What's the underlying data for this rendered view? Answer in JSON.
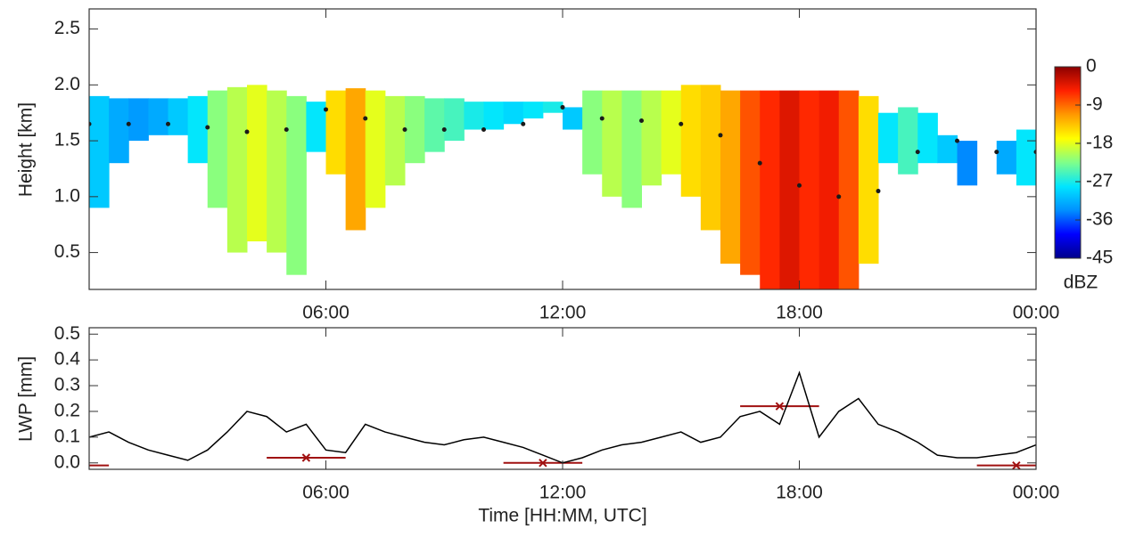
{
  "chart_data": [
    {
      "type": "time-height",
      "y_label": "Height [km]",
      "xlim": [
        0,
        24
      ],
      "ylim": [
        0.17,
        2.68
      ],
      "xticks": [
        {
          "value": 6,
          "label": "06:00"
        },
        {
          "value": 12,
          "label": "12:00"
        },
        {
          "value": 18,
          "label": "18:00"
        },
        {
          "value": 24,
          "label": "00:00"
        }
      ],
      "yticks": [
        {
          "value": 0.5,
          "label": "0.5"
        },
        {
          "value": 1,
          "label": "1.0"
        },
        {
          "value": 1.5,
          "label": "1.5"
        },
        {
          "value": 2,
          "label": "2.0"
        },
        {
          "value": 2.5,
          "label": "2.5"
        }
      ],
      "x": [
        0.25,
        0.75,
        1.25,
        1.75,
        2.25,
        2.75,
        3.25,
        3.75,
        4.25,
        4.75,
        5.25,
        5.75,
        6.25,
        6.75,
        7.25,
        7.75,
        8.25,
        8.75,
        9.25,
        9.75,
        10.25,
        10.75,
        11.25,
        11.75,
        12.25,
        12.75,
        13.25,
        13.75,
        14.25,
        14.75,
        15.25,
        15.75,
        16.25,
        16.75,
        17.25,
        17.75,
        18.25,
        18.75,
        19.25,
        19.75,
        20.25,
        20.75,
        21.25,
        21.75,
        22.25,
        22.75,
        23.25,
        23.75
      ],
      "cloud_top": [
        1.9,
        1.88,
        1.88,
        1.88,
        1.88,
        1.9,
        1.95,
        1.98,
        2.0,
        1.95,
        1.9,
        1.85,
        1.95,
        1.97,
        1.95,
        1.9,
        1.9,
        1.88,
        1.88,
        1.85,
        1.85,
        1.85,
        1.85,
        1.85,
        1.8,
        1.95,
        1.95,
        1.95,
        1.95,
        1.95,
        2.0,
        2.0,
        1.95,
        1.95,
        1.95,
        1.95,
        1.95,
        1.95,
        1.95,
        1.9,
        1.75,
        1.8,
        1.75,
        1.55,
        1.5,
        null,
        1.5,
        1.6
      ],
      "cloud_base": [
        0.9,
        1.3,
        1.5,
        1.55,
        1.55,
        1.3,
        0.9,
        0.5,
        0.6,
        0.5,
        0.3,
        1.4,
        1.2,
        0.7,
        0.9,
        1.1,
        1.3,
        1.4,
        1.5,
        1.6,
        1.6,
        1.65,
        1.7,
        1.75,
        1.6,
        1.2,
        1.0,
        0.9,
        1.1,
        1.2,
        1.0,
        0.7,
        0.4,
        0.3,
        0.17,
        0.17,
        0.17,
        0.17,
        0.17,
        0.4,
        1.3,
        1.2,
        1.3,
        1.3,
        1.1,
        null,
        1.2,
        1.1
      ],
      "reflectivity": [
        -30,
        -32,
        -33,
        -32,
        -30,
        -28,
        -22,
        -20,
        -18,
        -20,
        -22,
        -28,
        -15,
        -12,
        -18,
        -20,
        -22,
        -24,
        -25,
        -27,
        -28,
        -29,
        -28,
        -27,
        -30,
        -22,
        -20,
        -22,
        -20,
        -18,
        -15,
        -14,
        -12,
        -8,
        -6,
        -4,
        -6,
        -5,
        -8,
        -15,
        -28,
        -25,
        -28,
        -30,
        -34,
        null,
        -32,
        -28
      ],
      "lidar_x": [
        0,
        1,
        2,
        3,
        4,
        5,
        6,
        7,
        8,
        9,
        10,
        11,
        12,
        13,
        14,
        15,
        16,
        17,
        18,
        19,
        20,
        21,
        22,
        23,
        24
      ],
      "lidar_base": [
        1.65,
        1.65,
        1.65,
        1.62,
        1.58,
        1.6,
        1.78,
        1.7,
        1.6,
        1.6,
        1.6,
        1.65,
        1.8,
        1.7,
        1.68,
        1.65,
        1.55,
        1.3,
        1.1,
        1.0,
        1.05,
        1.4,
        1.5,
        1.4,
        1.4
      ],
      "lidar_color": "#1a1a1a",
      "colorbar": {
        "label": "dBZ",
        "lim": [
          -45,
          0
        ],
        "ticks": [
          0,
          -9,
          -18,
          -27,
          -36,
          -45
        ],
        "colors": [
          "#00008b",
          "#0000ff",
          "#0090ff",
          "#00e5ff",
          "#7fff8a",
          "#ffff00",
          "#ff9900",
          "#ff2000",
          "#8b0000"
        ]
      }
    },
    {
      "type": "line",
      "y_label": "LWP [mm]",
      "x_label": "Time [HH:MM, UTC]",
      "xlim": [
        0,
        24
      ],
      "ylim": [
        -0.025,
        0.525
      ],
      "xticks": [
        {
          "value": 6,
          "label": "06:00"
        },
        {
          "value": 12,
          "label": "12:00"
        },
        {
          "value": 18,
          "label": "18:00"
        },
        {
          "value": 24,
          "label": "00:00"
        }
      ],
      "yticks": [
        {
          "value": 0,
          "label": "0.0"
        },
        0.1,
        0.2,
        0.3,
        0.4,
        0.5
      ],
      "x": [
        0,
        0.5,
        1,
        1.5,
        2,
        2.5,
        3,
        3.5,
        4,
        4.5,
        5,
        5.5,
        6,
        6.5,
        7,
        7.5,
        8,
        8.5,
        9,
        9.5,
        10,
        10.5,
        11,
        11.5,
        12,
        12.5,
        13,
        13.5,
        14,
        14.5,
        15,
        15.5,
        16,
        16.5,
        17,
        17.5,
        18,
        18.5,
        19,
        19.5,
        20,
        20.5,
        21,
        21.5,
        22,
        22.5,
        23,
        23.5,
        24
      ],
      "values": [
        0.1,
        0.12,
        0.08,
        0.05,
        0.03,
        0.01,
        0.05,
        0.12,
        0.2,
        0.18,
        0.12,
        0.15,
        0.05,
        0.04,
        0.15,
        0.12,
        0.1,
        0.08,
        0.07,
        0.09,
        0.1,
        0.08,
        0.06,
        0.03,
        0.0,
        0.02,
        0.05,
        0.07,
        0.08,
        0.1,
        0.12,
        0.08,
        0.1,
        0.18,
        0.2,
        0.15,
        0.35,
        0.1,
        0.2,
        0.25,
        0.15,
        0.12,
        0.08,
        0.03,
        0.02,
        0.02,
        0.03,
        0.04,
        0.07
      ],
      "color": "#000000",
      "markers": {
        "x": [
          -0.5,
          5.5,
          11.5,
          17.5,
          23.5
        ],
        "values": [
          -0.01,
          0.02,
          0.0,
          0.22,
          -0.01
        ],
        "x_err": [
          1,
          1,
          1,
          1,
          1
        ],
        "color": "#a01010"
      }
    }
  ]
}
